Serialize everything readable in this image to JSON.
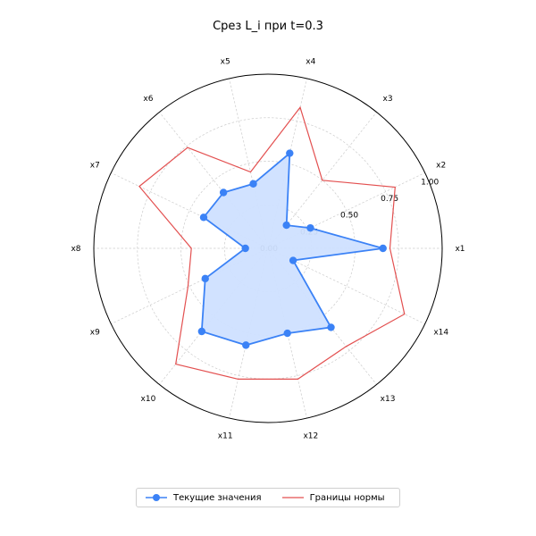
{
  "chart_data": {
    "type": "radar",
    "title": "Срез L_i при t=0.3",
    "categories": [
      "x1",
      "x2",
      "x3",
      "x4",
      "x5",
      "x6",
      "x7",
      "x8",
      "x9",
      "x10",
      "x11",
      "x12",
      "x13",
      "x14"
    ],
    "rlim": [
      0,
      1.0
    ],
    "rticks": [
      "0.00",
      "0.25",
      "0.50",
      "0.75",
      "1.00"
    ],
    "rtick_values": [
      0,
      0.25,
      0.5,
      0.75,
      1.0
    ],
    "grid": true,
    "legend_position": "bottom-center",
    "series": [
      {
        "name": "Текущие значения",
        "values": [
          0.66,
          0.27,
          0.17,
          0.56,
          0.38,
          0.41,
          0.41,
          0.13,
          0.4,
          0.61,
          0.57,
          0.5,
          0.58,
          0.16
        ],
        "color": "#3b82f6",
        "marker": "circle",
        "fill": "#cfe0ff"
      },
      {
        "name": "Границы нормы",
        "values": [
          0.7,
          0.81,
          0.5,
          0.83,
          0.45,
          0.74,
          0.82,
          0.44,
          0.51,
          0.85,
          0.77,
          0.77,
          0.72,
          0.87
        ],
        "color": "#e35050",
        "marker": "none"
      }
    ]
  }
}
